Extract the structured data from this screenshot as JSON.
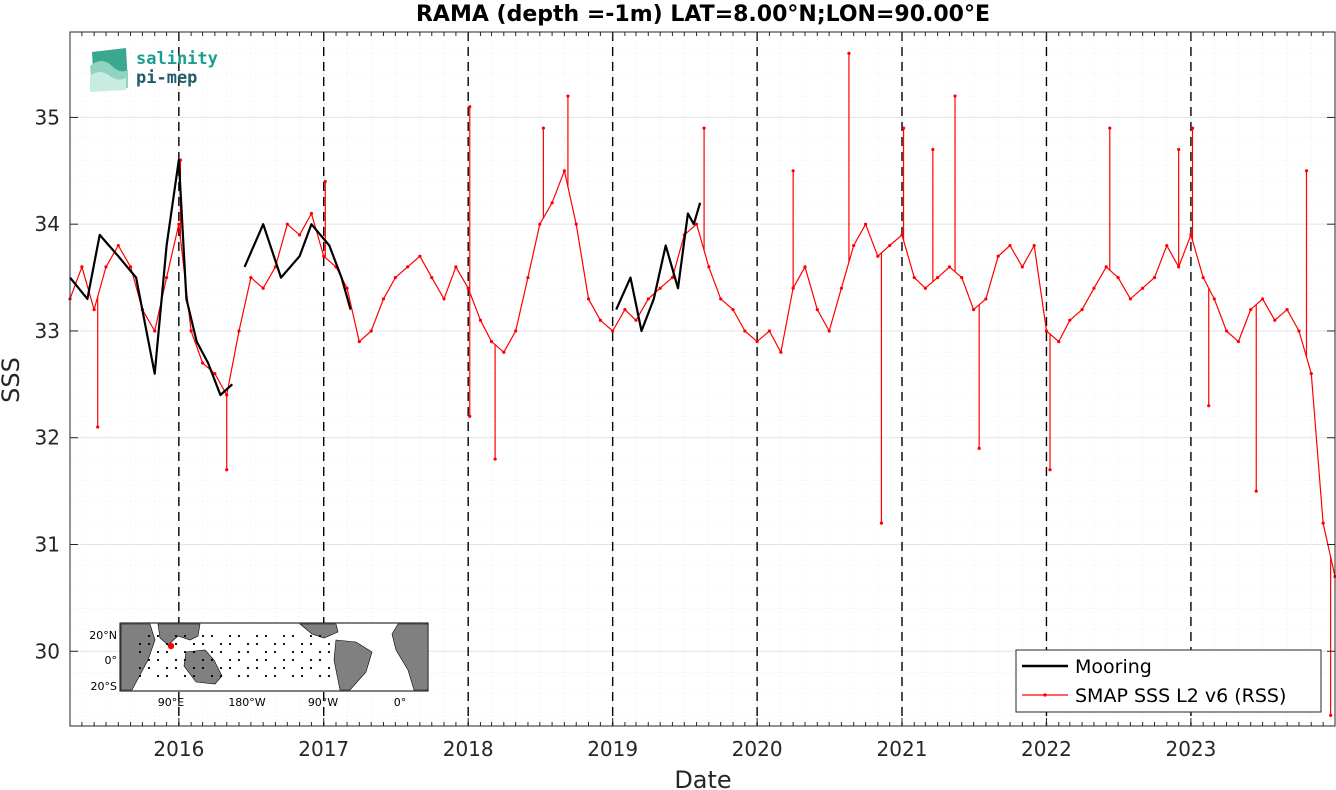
{
  "logo": {
    "line1": "salinity",
    "line2": "pi-mep",
    "color": "#1a9e8f"
  },
  "chart_data": {
    "type": "line",
    "title": "RAMA (depth =-1m) LAT=8.00°N;LON=90.00°E",
    "xlabel": "Date",
    "ylabel": "SSS",
    "xlim": [
      "2015-04-01",
      "2023-12-31"
    ],
    "ylim": [
      29.3,
      35.8
    ],
    "x_ticks": [
      "2016",
      "2017",
      "2018",
      "2019",
      "2020",
      "2021",
      "2022",
      "2023"
    ],
    "y_ticks": [
      30,
      31,
      32,
      33,
      34,
      35
    ],
    "grid": true,
    "year_lines": [
      "2016-01-01",
      "2017-01-01",
      "2018-01-01",
      "2019-01-01",
      "2020-01-01",
      "2021-01-01",
      "2022-01-01",
      "2023-01-01"
    ],
    "legend_position": "bottom-right",
    "series": [
      {
        "name": "Mooring",
        "color": "#000000",
        "x": [
          "2015-04-01",
          "2015-05-15",
          "2015-06-15",
          "2015-08-01",
          "2015-09-15",
          "2015-11-01",
          "2015-12-01",
          "2016-01-01",
          "2016-01-20",
          "2016-02-15",
          "2016-03-15",
          "2016-04-15",
          "2016-05-15",
          null,
          "2016-06-15",
          "2016-08-01",
          "2016-09-15",
          "2016-11-01",
          "2016-12-01",
          "2017-01-15",
          "2017-02-15",
          "2017-03-10",
          null,
          "2019-01-10",
          "2019-02-15",
          "2019-03-15",
          "2019-04-15",
          "2019-05-15",
          "2019-06-15",
          "2019-07-10",
          "2019-07-25",
          "2019-08-10"
        ],
        "y": [
          33.5,
          33.3,
          33.9,
          33.7,
          33.5,
          32.6,
          33.8,
          34.6,
          33.3,
          32.9,
          32.7,
          32.4,
          32.5,
          null,
          33.6,
          34.0,
          33.5,
          33.7,
          34.0,
          33.8,
          33.5,
          33.2,
          null,
          33.2,
          33.5,
          33.0,
          33.3,
          33.8,
          33.4,
          34.1,
          34.0,
          34.2
        ]
      },
      {
        "name": "SMAP SSS L2 v6 (RSS)",
        "color": "#ff0000",
        "x": [
          "2015-04-01",
          "2015-05-01",
          "2015-06-01",
          "2015-07-01",
          "2015-08-01",
          "2015-09-01",
          "2015-10-01",
          "2015-11-01",
          "2015-12-01",
          "2016-01-01",
          "2016-02-01",
          "2016-03-01",
          "2016-04-01",
          "2016-05-01",
          "2016-06-01",
          "2016-07-01",
          "2016-08-01",
          "2016-09-01",
          "2016-10-01",
          "2016-11-01",
          "2016-12-01",
          "2017-01-01",
          "2017-02-01",
          "2017-03-01",
          "2017-04-01",
          "2017-05-01",
          "2017-06-01",
          "2017-07-01",
          "2017-08-01",
          "2017-09-01",
          "2017-10-01",
          "2017-11-01",
          "2017-12-01",
          "2018-01-01",
          "2018-02-01",
          "2018-03-01",
          "2018-04-01",
          "2018-05-01",
          "2018-06-01",
          "2018-07-01",
          "2018-08-01",
          "2018-09-01",
          "2018-10-01",
          "2018-11-01",
          "2018-12-01",
          "2019-01-01",
          "2019-02-01",
          "2019-03-01",
          "2019-04-01",
          "2019-05-01",
          "2019-06-01",
          "2019-07-01",
          "2019-08-01",
          "2019-09-01",
          "2019-10-01",
          "2019-11-01",
          "2019-12-01",
          "2020-01-01",
          "2020-02-01",
          "2020-03-01",
          "2020-04-01",
          "2020-05-01",
          "2020-06-01",
          "2020-07-01",
          "2020-08-01",
          "2020-09-01",
          "2020-10-01",
          "2020-11-01",
          "2020-12-01",
          "2021-01-01",
          "2021-02-01",
          "2021-03-01",
          "2021-04-01",
          "2021-05-01",
          "2021-06-01",
          "2021-07-01",
          "2021-08-01",
          "2021-09-01",
          "2021-10-01",
          "2021-11-01",
          "2021-12-01",
          "2022-01-01",
          "2022-02-01",
          "2022-03-01",
          "2022-04-01",
          "2022-05-01",
          "2022-06-01",
          "2022-07-01",
          "2022-08-01",
          "2022-09-01",
          "2022-10-01",
          "2022-11-01",
          "2022-12-01",
          "2023-01-01",
          "2023-02-01",
          "2023-03-01",
          "2023-04-01",
          "2023-05-01",
          "2023-06-01",
          "2023-07-01",
          "2023-08-01",
          "2023-09-01",
          "2023-10-01",
          "2023-11-01",
          "2023-12-01",
          "2023-12-31"
        ],
        "y": [
          33.3,
          33.6,
          33.2,
          33.6,
          33.8,
          33.6,
          33.2,
          33.0,
          33.5,
          34.0,
          33.0,
          32.7,
          32.6,
          32.4,
          33.0,
          33.5,
          33.4,
          33.6,
          34.0,
          33.9,
          34.1,
          33.7,
          33.6,
          33.4,
          32.9,
          33.0,
          33.3,
          33.5,
          33.6,
          33.7,
          33.5,
          33.3,
          33.6,
          33.4,
          33.1,
          32.9,
          32.8,
          33.0,
          33.5,
          34.0,
          34.2,
          34.5,
          34.0,
          33.3,
          33.1,
          33.0,
          33.2,
          33.1,
          33.3,
          33.4,
          33.5,
          33.9,
          34.0,
          33.6,
          33.3,
          33.2,
          33.0,
          32.9,
          33.0,
          32.8,
          33.4,
          33.6,
          33.2,
          33.0,
          33.4,
          33.8,
          34.0,
          33.7,
          33.8,
          33.9,
          33.5,
          33.4,
          33.5,
          33.6,
          33.5,
          33.2,
          33.3,
          33.7,
          33.8,
          33.6,
          33.8,
          33.0,
          32.9,
          33.1,
          33.2,
          33.4,
          33.6,
          33.5,
          33.3,
          33.4,
          33.5,
          33.8,
          33.6,
          33.9,
          33.5,
          33.3,
          33.0,
          32.9,
          33.2,
          33.3,
          33.1,
          33.2,
          33.0,
          32.6,
          31.2,
          30.7
        ]
      }
    ],
    "spikes": [
      {
        "x": "2015-06-10",
        "y": 32.1
      },
      {
        "x": "2016-01-05",
        "y": 34.6
      },
      {
        "x": "2016-05-01",
        "y": 31.7
      },
      {
        "x": "2017-01-05",
        "y": 34.4
      },
      {
        "x": "2018-01-05",
        "y": 35.1
      },
      {
        "x": "2018-01-05",
        "y": 32.2
      },
      {
        "x": "2018-03-10",
        "y": 31.8
      },
      {
        "x": "2018-07-10",
        "y": 34.9
      },
      {
        "x": "2018-09-10",
        "y": 35.2
      },
      {
        "x": "2019-08-20",
        "y": 34.9
      },
      {
        "x": "2020-04-01",
        "y": 34.5
      },
      {
        "x": "2020-08-20",
        "y": 35.6
      },
      {
        "x": "2020-11-10",
        "y": 31.2
      },
      {
        "x": "2021-01-05",
        "y": 34.9
      },
      {
        "x": "2021-03-20",
        "y": 34.7
      },
      {
        "x": "2021-05-15",
        "y": 35.2
      },
      {
        "x": "2021-07-15",
        "y": 31.9
      },
      {
        "x": "2022-01-10",
        "y": 31.7
      },
      {
        "x": "2022-06-10",
        "y": 34.9
      },
      {
        "x": "2022-12-01",
        "y": 34.7
      },
      {
        "x": "2023-01-05",
        "y": 34.9
      },
      {
        "x": "2023-02-15",
        "y": 32.3
      },
      {
        "x": "2023-06-15",
        "y": 31.5
      },
      {
        "x": "2023-10-20",
        "y": 34.5
      },
      {
        "x": "2023-12-20",
        "y": 29.4
      }
    ],
    "inset_map": {
      "lat_labels": [
        "20°N",
        "0°",
        "20°S"
      ],
      "lon_labels": [
        "90°E",
        "180°W",
        "90°W",
        "0°"
      ],
      "marker_color": "#ff0000"
    }
  }
}
